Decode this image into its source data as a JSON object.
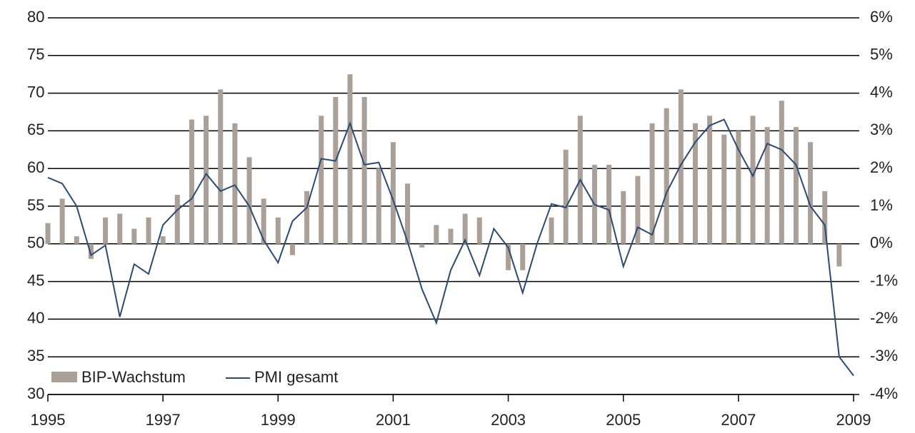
{
  "chart_data": {
    "type": "bar-line",
    "x": [
      1995,
      1995.25,
      1995.5,
      1995.75,
      1996,
      1996.25,
      1996.5,
      1996.75,
      1997,
      1997.25,
      1997.5,
      1997.75,
      1998,
      1998.25,
      1998.5,
      1998.75,
      1999,
      1999.25,
      1999.5,
      1999.75,
      2000,
      2000.25,
      2000.5,
      2000.75,
      2001,
      2001.25,
      2001.5,
      2001.75,
      2002,
      2002.25,
      2002.5,
      2002.75,
      2003,
      2003.25,
      2003.5,
      2003.75,
      2004,
      2004.25,
      2004.5,
      2004.75,
      2005,
      2005.25,
      2005.5,
      2005.75,
      2006,
      2006.25,
      2006.5,
      2006.75,
      2007,
      2007.25,
      2007.5,
      2007.75,
      2008,
      2008.25,
      2008.5,
      2008.75,
      2009
    ],
    "series": [
      {
        "name": "BIP-Wachstum",
        "color": "#aaa098",
        "axis": "y2",
        "values": [
          0.55,
          1.2,
          0.2,
          -0.4,
          0.7,
          0.8,
          0.4,
          0.7,
          0.2,
          1.3,
          3.3,
          3.4,
          4.1,
          3.2,
          2.3,
          1.2,
          0.7,
          -0.3,
          1.4,
          3.4,
          3.9,
          4.5,
          3.9,
          2.0,
          2.7,
          1.6,
          -0.1,
          0.5,
          0.4,
          0.8,
          0.7,
          0,
          -0.7,
          -0.7,
          0,
          0.7,
          2.5,
          3.4,
          2.1,
          2.1,
          1.4,
          1.8,
          3.2,
          3.6,
          4.1,
          3.2,
          3.4,
          2.9,
          3.0,
          3.4,
          3.1,
          3.8,
          3.1,
          2.7,
          1.4,
          -0.6,
          null
        ]
      },
      {
        "name": "PMI gesamt",
        "color": "#2d4a70",
        "axis": "y",
        "values": [
          58.8,
          58,
          55,
          48.5,
          49.8,
          40.3,
          47.3,
          46,
          52.5,
          54.5,
          56,
          59.3,
          57,
          57.8,
          55,
          50.5,
          47.5,
          53,
          54.8,
          61.3,
          61,
          66,
          60.5,
          60.8,
          55.8,
          50.3,
          44,
          39.5,
          46.5,
          50.5,
          45.8,
          52,
          49.5,
          43.5,
          50,
          55.3,
          54.8,
          58.5,
          55.2,
          54.5,
          47,
          52.2,
          51.2,
          56.8,
          60.5,
          63.5,
          65.7,
          66.5,
          62.5,
          59,
          63.3,
          62.5,
          60.5,
          55,
          52.5,
          35,
          32.5
        ]
      }
    ],
    "xlim": [
      1995,
      2009
    ],
    "xticks": [
      1995,
      1997,
      1999,
      2001,
      2003,
      2005,
      2007,
      2009
    ],
    "ylim": [
      30,
      80
    ],
    "yticks": [
      30,
      35,
      40,
      45,
      50,
      55,
      60,
      65,
      70,
      75,
      80
    ],
    "y2lim": [
      -4,
      6
    ],
    "y2ticks": [
      {
        "value": -4,
        "label": "-4%"
      },
      {
        "value": -3,
        "label": "-3%"
      },
      {
        "value": -2,
        "label": "-2%"
      },
      {
        "value": -1,
        "label": "-1%"
      },
      {
        "value": 0,
        "label": "0%"
      },
      {
        "value": 1,
        "label": "1%"
      },
      {
        "value": 2,
        "label": "2%"
      },
      {
        "value": 3,
        "label": "3%"
      },
      {
        "value": 4,
        "label": "4%"
      },
      {
        "value": 5,
        "label": "5%"
      },
      {
        "value": 6,
        "label": "6%"
      }
    ],
    "grid": true,
    "legend": "lower left"
  }
}
